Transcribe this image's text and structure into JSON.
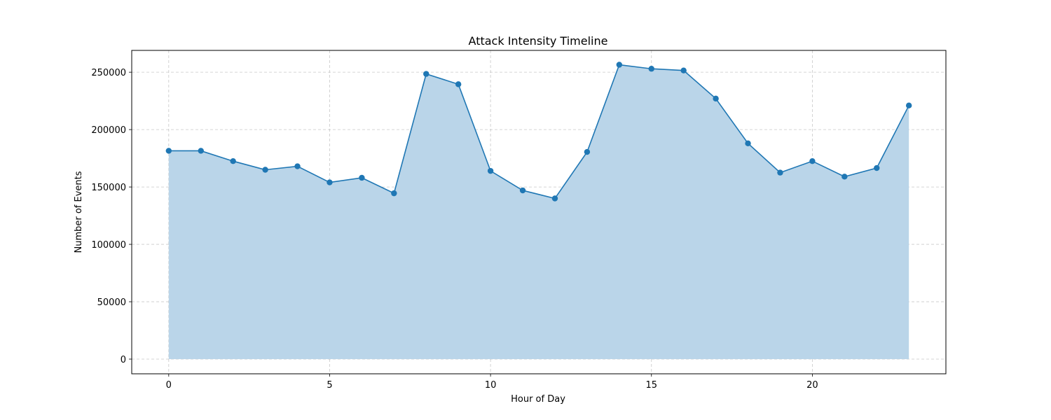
{
  "chart_data": {
    "type": "area",
    "title": "Attack Intensity Timeline",
    "xlabel": "Hour of Day",
    "ylabel": "Number of Events",
    "x": [
      0,
      1,
      2,
      3,
      4,
      5,
      6,
      7,
      8,
      9,
      10,
      11,
      12,
      13,
      14,
      15,
      16,
      17,
      18,
      19,
      20,
      21,
      22,
      23
    ],
    "series": [
      {
        "values": [
          181500,
          181500,
          172500,
          165000,
          168000,
          154000,
          158000,
          144500,
          248500,
          239500,
          164000,
          147000,
          140000,
          180500,
          256500,
          253000,
          251500,
          227000,
          188000,
          162500,
          172500,
          159000,
          166500,
          221000
        ]
      }
    ],
    "xlim": [
      -1.15,
      24.15
    ],
    "ylim": [
      -12800,
      269000
    ],
    "xticks": [
      0,
      5,
      10,
      15,
      20
    ],
    "yticks": [
      0,
      50000,
      100000,
      150000,
      200000,
      250000
    ],
    "xtick_labels": [
      "0",
      "5",
      "10",
      "15",
      "20"
    ],
    "ytick_labels": [
      "0",
      "50000",
      "100000",
      "150000",
      "200000",
      "250000"
    ],
    "grid": true,
    "colors": {
      "line": "#1f77b4",
      "fill": "#bad5e9"
    }
  }
}
